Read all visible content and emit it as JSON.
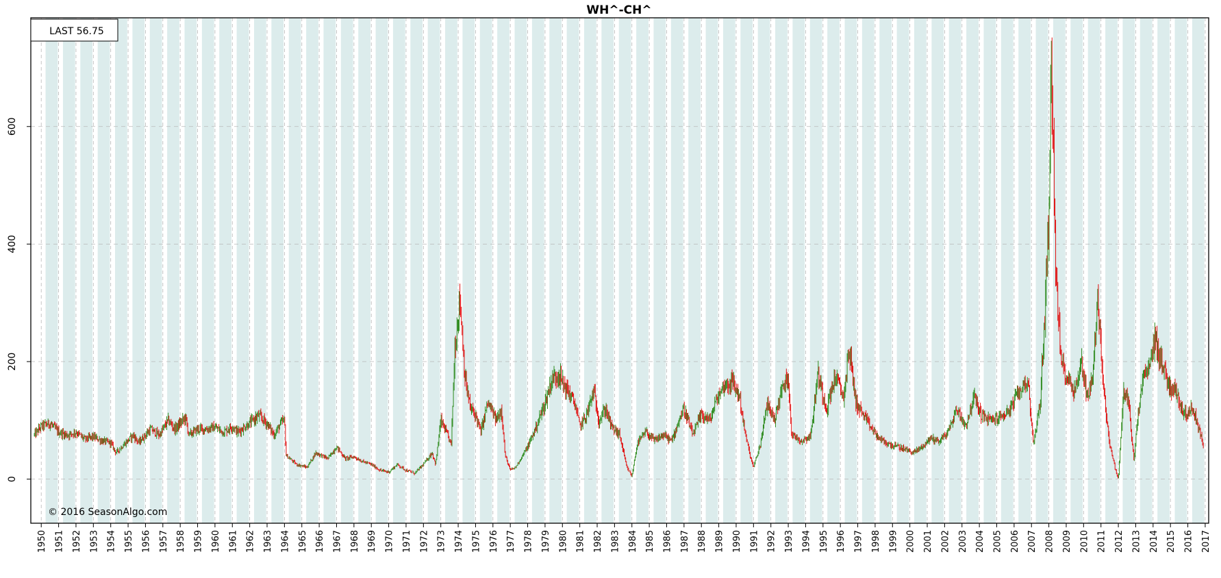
{
  "chart_data": {
    "type": "bar",
    "style": "OHLC price bars (up bars green, down bars red), monthly",
    "title": "WH^-CH^",
    "last_label": "LAST 56.75",
    "copyright": "© 2016 SeasonAlgo.com",
    "xlabel": "",
    "ylabel": "",
    "xlim": [
      1949.4,
      2017.2
    ],
    "ylim": [
      -75,
      785
    ],
    "yticks": [
      0,
      200,
      400,
      600
    ],
    "xticks": [
      1950,
      1951,
      1952,
      1953,
      1954,
      1955,
      1956,
      1957,
      1958,
      1959,
      1960,
      1961,
      1962,
      1963,
      1964,
      1965,
      1966,
      1967,
      1968,
      1969,
      1970,
      1971,
      1972,
      1973,
      1974,
      1975,
      1976,
      1977,
      1978,
      1979,
      1980,
      1981,
      1982,
      1983,
      1984,
      1985,
      1986,
      1987,
      1988,
      1989,
      1990,
      1991,
      1992,
      1993,
      1994,
      1995,
      1996,
      1997,
      1998,
      1999,
      2000,
      2001,
      2002,
      2003,
      2004,
      2005,
      2006,
      2007,
      2008,
      2009,
      2010,
      2011,
      2012,
      2013,
      2014,
      2015,
      2016,
      2017
    ],
    "grid": true,
    "shaded_bands": "alternating light-teal vertical bands, roughly Jun–Dec of each year",
    "up_color": "#2e8b1e",
    "down_color": "#e01010",
    "band_color": "#dcecec",
    "grid_color": "#b8b8b8",
    "series": [
      {
        "values_note": "approximate closing levels at key dates (x in decimal years, y in price units)",
        "points": [
          [
            1949.6,
            75
          ],
          [
            1950.0,
            90
          ],
          [
            1950.5,
            95
          ],
          [
            1951.0,
            80
          ],
          [
            1951.5,
            75
          ],
          [
            1952.0,
            80
          ],
          [
            1952.5,
            68
          ],
          [
            1953.0,
            72
          ],
          [
            1953.5,
            65
          ],
          [
            1954.0,
            62
          ],
          [
            1954.3,
            45
          ],
          [
            1954.8,
            60
          ],
          [
            1955.3,
            75
          ],
          [
            1955.6,
            62
          ],
          [
            1956.3,
            85
          ],
          [
            1956.8,
            75
          ],
          [
            1957.3,
            100
          ],
          [
            1957.7,
            85
          ],
          [
            1958.3,
            105
          ],
          [
            1958.5,
            75
          ],
          [
            1959.0,
            85
          ],
          [
            1959.5,
            85
          ],
          [
            1960.0,
            88
          ],
          [
            1960.5,
            80
          ],
          [
            1961.0,
            90
          ],
          [
            1961.3,
            80
          ],
          [
            1962.0,
            95
          ],
          [
            1962.5,
            108
          ],
          [
            1963.0,
            95
          ],
          [
            1963.4,
            75
          ],
          [
            1963.8,
            95
          ],
          [
            1964.0,
            100
          ],
          [
            1964.1,
            40
          ],
          [
            1964.7,
            25
          ],
          [
            1965.3,
            20
          ],
          [
            1965.8,
            45
          ],
          [
            1966.5,
            35
          ],
          [
            1967.0,
            55
          ],
          [
            1967.5,
            35
          ],
          [
            1968.0,
            38
          ],
          [
            1968.5,
            30
          ],
          [
            1969.0,
            25
          ],
          [
            1969.5,
            15
          ],
          [
            1970.0,
            12
          ],
          [
            1970.5,
            25
          ],
          [
            1971.0,
            15
          ],
          [
            1971.5,
            10
          ],
          [
            1972.0,
            25
          ],
          [
            1972.5,
            45
          ],
          [
            1972.7,
            25
          ],
          [
            1973.0,
            100
          ],
          [
            1973.3,
            80
          ],
          [
            1973.6,
            60
          ],
          [
            1973.8,
            220
          ],
          [
            1974.1,
            310
          ],
          [
            1974.4,
            170
          ],
          [
            1974.7,
            120
          ],
          [
            1975.0,
            110
          ],
          [
            1975.3,
            80
          ],
          [
            1975.7,
            130
          ],
          [
            1976.2,
            100
          ],
          [
            1976.5,
            120
          ],
          [
            1976.7,
            40
          ],
          [
            1977.0,
            15
          ],
          [
            1977.3,
            20
          ],
          [
            1977.6,
            35
          ],
          [
            1978.0,
            55
          ],
          [
            1978.5,
            90
          ],
          [
            1979.0,
            130
          ],
          [
            1979.4,
            170
          ],
          [
            1979.8,
            180
          ],
          [
            1980.0,
            165
          ],
          [
            1980.3,
            150
          ],
          [
            1980.7,
            130
          ],
          [
            1981.0,
            90
          ],
          [
            1981.4,
            110
          ],
          [
            1981.8,
            150
          ],
          [
            1982.1,
            100
          ],
          [
            1982.5,
            120
          ],
          [
            1982.8,
            90
          ],
          [
            1983.3,
            75
          ],
          [
            1983.7,
            20
          ],
          [
            1984.0,
            5
          ],
          [
            1984.3,
            60
          ],
          [
            1984.8,
            80
          ],
          [
            1985.3,
            65
          ],
          [
            1985.8,
            75
          ],
          [
            1986.3,
            65
          ],
          [
            1986.7,
            100
          ],
          [
            1987.0,
            120
          ],
          [
            1987.5,
            75
          ],
          [
            1988.0,
            110
          ],
          [
            1988.5,
            100
          ],
          [
            1988.8,
            130
          ],
          [
            1989.3,
            160
          ],
          [
            1989.8,
            165
          ],
          [
            1990.2,
            140
          ],
          [
            1990.5,
            80
          ],
          [
            1990.8,
            40
          ],
          [
            1991.0,
            20
          ],
          [
            1991.4,
            60
          ],
          [
            1991.8,
            130
          ],
          [
            1992.2,
            100
          ],
          [
            1992.6,
            150
          ],
          [
            1993.0,
            175
          ],
          [
            1993.2,
            75
          ],
          [
            1993.8,
            65
          ],
          [
            1994.3,
            75
          ],
          [
            1994.7,
            180
          ],
          [
            1995.2,
            120
          ],
          [
            1995.7,
            175
          ],
          [
            1996.2,
            140
          ],
          [
            1996.5,
            225
          ],
          [
            1996.9,
            130
          ],
          [
            1997.3,
            110
          ],
          [
            1997.7,
            90
          ],
          [
            1998.2,
            70
          ],
          [
            1998.7,
            60
          ],
          [
            1999.3,
            55
          ],
          [
            1999.8,
            50
          ],
          [
            2000.2,
            45
          ],
          [
            2000.7,
            55
          ],
          [
            2001.2,
            70
          ],
          [
            2001.7,
            65
          ],
          [
            2002.2,
            80
          ],
          [
            2002.7,
            120
          ],
          [
            2003.2,
            90
          ],
          [
            2003.7,
            140
          ],
          [
            2004.1,
            110
          ],
          [
            2004.6,
            100
          ],
          [
            2005.2,
            105
          ],
          [
            2005.8,
            120
          ],
          [
            2006.3,
            150
          ],
          [
            2006.8,
            170
          ],
          [
            2007.1,
            60
          ],
          [
            2007.5,
            130
          ],
          [
            2007.8,
            300
          ],
          [
            2008.0,
            450
          ],
          [
            2008.15,
            720
          ],
          [
            2008.4,
            350
          ],
          [
            2008.7,
            200
          ],
          [
            2009.1,
            170
          ],
          [
            2009.5,
            150
          ],
          [
            2009.9,
            200
          ],
          [
            2010.2,
            140
          ],
          [
            2010.5,
            170
          ],
          [
            2010.8,
            300
          ],
          [
            2011.0,
            220
          ],
          [
            2011.2,
            140
          ],
          [
            2011.5,
            60
          ],
          [
            2011.8,
            20
          ],
          [
            2012.0,
            0
          ],
          [
            2012.3,
            150
          ],
          [
            2012.6,
            130
          ],
          [
            2012.9,
            30
          ],
          [
            2013.1,
            100
          ],
          [
            2013.4,
            170
          ],
          [
            2013.8,
            190
          ],
          [
            2014.1,
            240
          ],
          [
            2014.5,
            200
          ],
          [
            2014.9,
            160
          ],
          [
            2015.3,
            150
          ],
          [
            2015.8,
            110
          ],
          [
            2016.3,
            120
          ],
          [
            2016.7,
            80
          ],
          [
            2016.9,
            56.75
          ]
        ]
      }
    ]
  }
}
